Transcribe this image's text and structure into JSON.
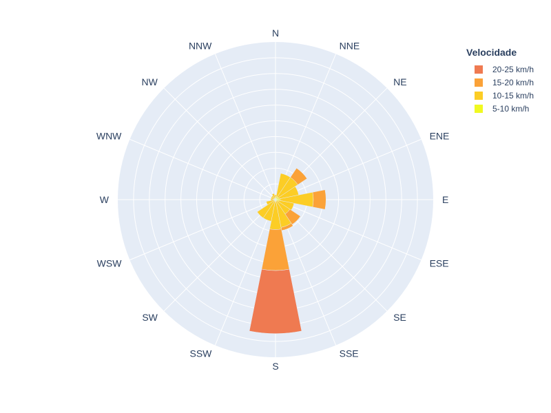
{
  "chart_data": {
    "type": "barpolar",
    "title": "",
    "directions": [
      "N",
      "NNE",
      "NE",
      "ENE",
      "E",
      "ESE",
      "SE",
      "SSE",
      "S",
      "SSW",
      "SW",
      "WSW",
      "W",
      "WNW",
      "NW",
      "NNW"
    ],
    "radial_range": [
      0,
      50
    ],
    "grid": true,
    "legend_title": "Velocidade",
    "legend_position": "right",
    "series": [
      {
        "name": "5-10 km/h",
        "color": "#f0f921",
        "values": [
          0.5,
          1.0,
          1.0,
          1.0,
          1.5,
          1.0,
          0.5,
          0.5,
          0.5,
          0.5,
          0.5,
          0.5,
          0.5,
          0.5,
          0.5,
          0.5
        ]
      },
      {
        "name": "10-15 km/h",
        "color": "#fccd25",
        "values": [
          1.0,
          7.5,
          7.5,
          6.5,
          10.5,
          5.0,
          5.0,
          8.5,
          9.0,
          6.5,
          6.5,
          2.5,
          1.0,
          1.0,
          1.0,
          1.5
        ]
      },
      {
        "name": "15-20 km/h",
        "color": "#fba238",
        "values": [
          0.0,
          0.0,
          3.5,
          0.0,
          4.0,
          0.0,
          4.0,
          1.0,
          13.0,
          0.0,
          0.0,
          0.0,
          0.0,
          0.0,
          0.0,
          0.0
        ]
      },
      {
        "name": "20-25 km/h",
        "color": "#ef7a51",
        "values": [
          0.0,
          0.0,
          0.0,
          0.0,
          0.0,
          0.0,
          0.0,
          0.0,
          20.0,
          0.0,
          0.0,
          0.0,
          0.0,
          0.0,
          0.0,
          0.0
        ]
      }
    ]
  },
  "legend": {
    "title": "Velocidade",
    "items": [
      {
        "label": "20-25 km/h",
        "color": "#ef7a51"
      },
      {
        "label": "15-20 km/h",
        "color": "#fba238"
      },
      {
        "label": "10-15 km/h",
        "color": "#fccd25"
      },
      {
        "label": "5-10 km/h",
        "color": "#f0f921"
      }
    ]
  }
}
